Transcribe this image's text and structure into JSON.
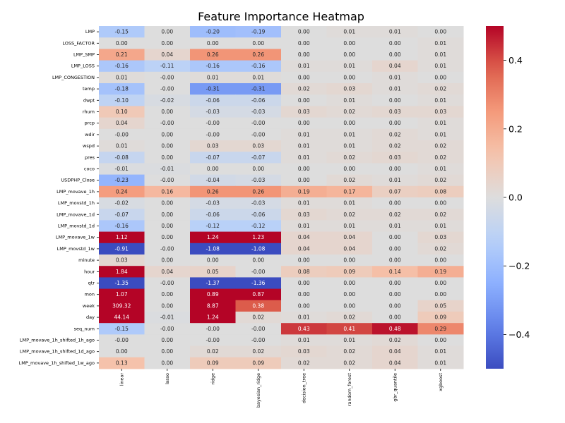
{
  "chart_data": {
    "type": "heatmap",
    "title": "Feature Importance Heatmap",
    "colormap": "coolwarm",
    "clim": [
      -0.5,
      0.5
    ],
    "colorbar_ticks": [
      -0.4,
      -0.2,
      0.0,
      0.2,
      0.4
    ],
    "colorbar_tick_labels": [
      "−0.4",
      "−0.2",
      "0.0",
      "0.2",
      "0.4"
    ],
    "columns": [
      "linear",
      "lasso",
      "ridge",
      "bayesian_ridge",
      "decision_tree",
      "random_forest",
      "gbr_quantile",
      "xgboost"
    ],
    "rows": [
      "LMP",
      "LOSS_FACTOR",
      "LMP_SMP",
      "LMP_LOSS",
      "LMP_CONGESTION",
      "temp",
      "dwpt",
      "rhum",
      "prcp",
      "wdir",
      "wspd",
      "pres",
      "coco",
      "USDPHP_Close",
      "LMP_movave_1h",
      "LMP_movstd_1h",
      "LMP_movave_1d",
      "LMP_movstd_1d",
      "LMP_movave_1w",
      "LMP_movstd_1w",
      "minute",
      "hour",
      "qtr",
      "mon",
      "week",
      "day",
      "seq_num",
      "LMP_movave_1h_shifted_1h_ago",
      "LMP_movave_1h_shifted_1d_ago",
      "LMP_movave_1h_shifted_1w_ago"
    ],
    "values": [
      [
        -0.15,
        0.0,
        -0.2,
        -0.19,
        0.0,
        0.01,
        0.01,
        0.0
      ],
      [
        0.0,
        0.0,
        0.0,
        0.0,
        0.0,
        0.0,
        0.0,
        0.01
      ],
      [
        0.21,
        0.04,
        0.26,
        0.26,
        0.0,
        0.0,
        0.0,
        0.01
      ],
      [
        -0.16,
        -0.11,
        -0.16,
        -0.16,
        0.01,
        0.01,
        0.04,
        0.01
      ],
      [
        0.01,
        -0.0,
        0.01,
        0.01,
        0.0,
        0.0,
        0.01,
        0.0
      ],
      [
        -0.18,
        -0.0,
        -0.31,
        -0.31,
        0.02,
        0.03,
        0.01,
        0.02
      ],
      [
        -0.1,
        -0.02,
        -0.06,
        -0.06,
        0.0,
        0.01,
        0.0,
        0.01
      ],
      [
        0.1,
        0.0,
        -0.03,
        -0.03,
        0.03,
        0.02,
        0.03,
        0.03
      ],
      [
        0.04,
        -0.0,
        -0.0,
        -0.0,
        0.0,
        0.0,
        0.0,
        0.01
      ],
      [
        -0.0,
        0.0,
        -0.0,
        -0.0,
        0.01,
        0.01,
        0.02,
        0.01
      ],
      [
        0.01,
        0.0,
        0.03,
        0.03,
        0.01,
        0.01,
        0.02,
        0.02
      ],
      [
        -0.08,
        0.0,
        -0.07,
        -0.07,
        0.01,
        0.02,
        0.03,
        0.02
      ],
      [
        -0.01,
        -0.01,
        0.0,
        0.0,
        0.0,
        0.0,
        0.0,
        0.01
      ],
      [
        -0.23,
        -0.0,
        -0.04,
        -0.03,
        0.0,
        0.02,
        0.01,
        0.02
      ],
      [
        0.24,
        0.16,
        0.26,
        0.26,
        0.19,
        0.17,
        0.07,
        0.08
      ],
      [
        -0.02,
        0.0,
        -0.03,
        -0.03,
        0.01,
        0.01,
        0.0,
        0.0
      ],
      [
        -0.07,
        0.0,
        -0.06,
        -0.06,
        0.03,
        0.02,
        0.02,
        0.02
      ],
      [
        -0.16,
        0.0,
        -0.12,
        -0.12,
        0.01,
        0.01,
        0.01,
        0.01
      ],
      [
        1.12,
        0.0,
        1.24,
        1.23,
        0.04,
        0.04,
        0.0,
        0.03
      ],
      [
        -0.91,
        -0.0,
        -1.08,
        -1.08,
        0.04,
        0.04,
        0.0,
        0.02
      ],
      [
        0.03,
        0.0,
        0.0,
        0.0,
        0.0,
        0.0,
        0.0,
        0.0
      ],
      [
        1.84,
        0.04,
        0.05,
        -0.0,
        0.08,
        0.09,
        0.14,
        0.19
      ],
      [
        -1.35,
        -0.0,
        -1.37,
        -1.36,
        0.0,
        0.0,
        0.0,
        0.0
      ],
      [
        1.07,
        0.0,
        0.89,
        0.87,
        0.0,
        0.0,
        0.0,
        0.0
      ],
      [
        309.32,
        0.0,
        8.87,
        0.38,
        0.0,
        0.0,
        0.0,
        0.05
      ],
      [
        44.14,
        -0.01,
        1.24,
        0.02,
        0.01,
        0.02,
        0.0,
        0.09
      ],
      [
        -0.15,
        -0.0,
        -0.0,
        -0.0,
        0.43,
        0.41,
        0.48,
        0.29
      ],
      [
        -0.0,
        0.0,
        -0.0,
        -0.0,
        0.01,
        0.01,
        0.02,
        0.0
      ],
      [
        0.0,
        0.0,
        0.02,
        0.02,
        0.03,
        0.02,
        0.04,
        0.01
      ],
      [
        0.13,
        0.0,
        0.09,
        0.09,
        0.02,
        0.02,
        0.04,
        0.01
      ]
    ],
    "xlabel": "",
    "ylabel": "",
    "grid": false,
    "colorbar": "right"
  }
}
